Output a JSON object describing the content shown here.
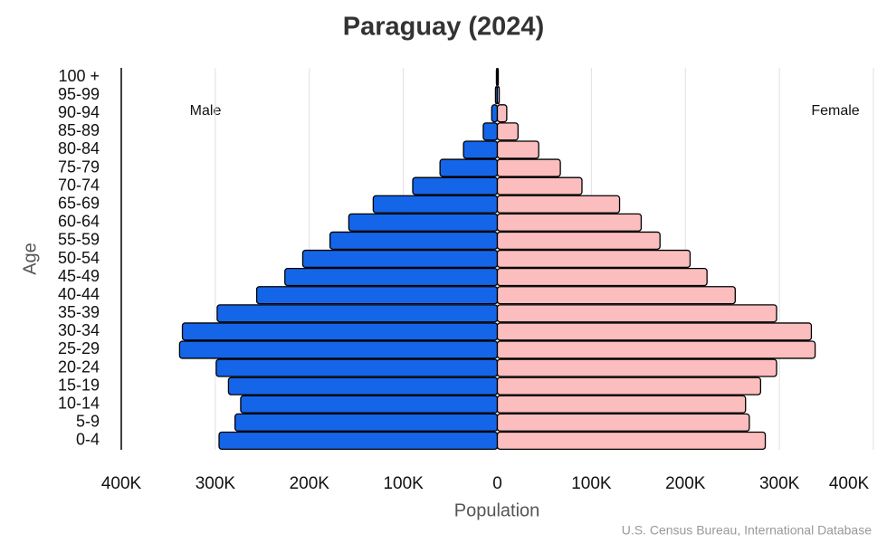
{
  "chart_data": {
    "type": "pyramid",
    "title": "Paraguay (2024)",
    "x_label": "Population",
    "y_label": "Age",
    "source": "U.S. Census Bureau, International Database",
    "categories": [
      "0-4",
      "5-9",
      "10-14",
      "15-19",
      "20-24",
      "25-29",
      "30-34",
      "35-39",
      "40-44",
      "45-49",
      "50-54",
      "55-59",
      "60-64",
      "65-69",
      "70-74",
      "75-79",
      "80-84",
      "85-89",
      "90-94",
      "95-99",
      "100 +"
    ],
    "series": [
      {
        "name": "Male",
        "color": "#1565e8",
        "values": [
          -296000,
          -279000,
          -273000,
          -286000,
          -299000,
          -338000,
          -335000,
          -298000,
          -256000,
          -226000,
          -207000,
          -178000,
          -158000,
          -132000,
          -90000,
          -61000,
          -36000,
          -15000,
          -6000,
          -2000,
          -1000
        ]
      },
      {
        "name": "Female",
        "color": "#fbbdbd",
        "values": [
          285000,
          268000,
          264000,
          280000,
          297000,
          338000,
          334000,
          297000,
          253000,
          223000,
          205000,
          173000,
          153000,
          130000,
          90000,
          67000,
          44000,
          22000,
          10000,
          2000,
          1000
        ]
      }
    ],
    "xlim": [
      -400000,
      400000
    ],
    "xticks": [
      {
        "value": -400000,
        "label": "400K"
      },
      {
        "value": -300000,
        "label": "300K"
      },
      {
        "value": -200000,
        "label": "200K"
      },
      {
        "value": -100000,
        "label": "100K"
      },
      0,
      {
        "value": 100000,
        "label": "100K"
      },
      {
        "value": 200000,
        "label": "200K"
      },
      {
        "value": 300000,
        "label": "300K"
      },
      {
        "value": 400000,
        "label": "400K"
      }
    ],
    "grid": true
  }
}
